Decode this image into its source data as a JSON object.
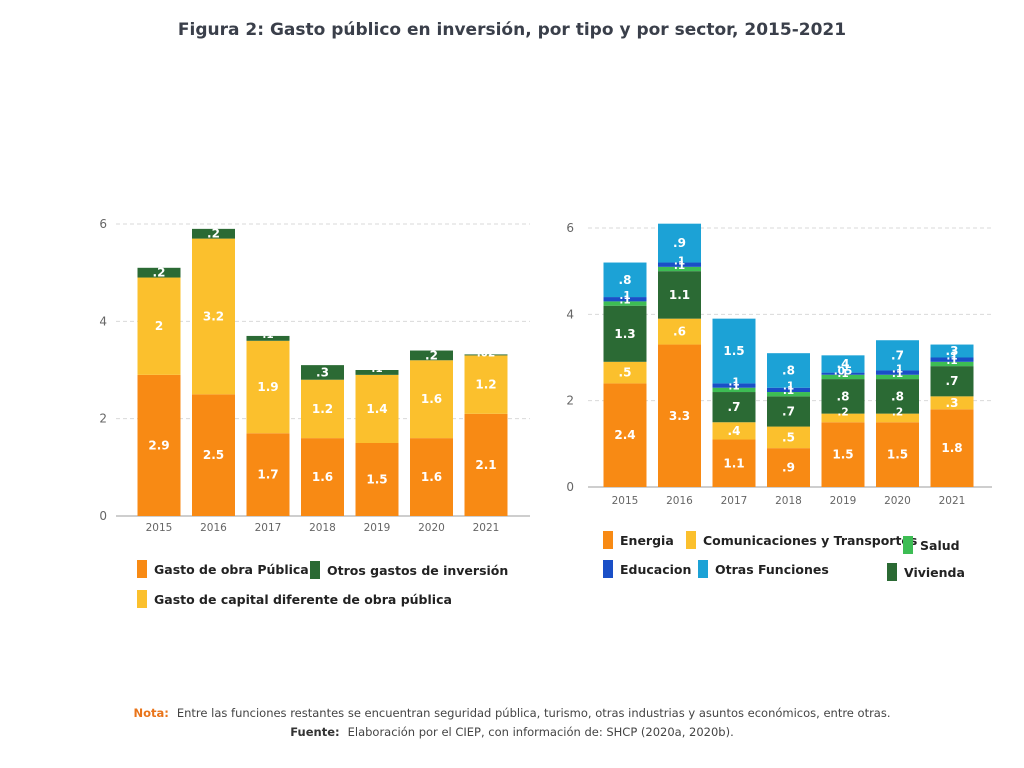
{
  "title": "Figura 2: Gasto público en inversión, por tipo y por sector, 2015-2021",
  "colors": {
    "orange": "#f88a14",
    "yellow": "#fbc02d",
    "darkgreen": "#2b6a34",
    "green": "#3dbd54",
    "blue": "#1a4fc7",
    "lightblue": "#1ca2d6",
    "grid": "#d9d9d9",
    "axis": "#9e9e9e"
  },
  "chart_data": [
    {
      "type": "bar",
      "stacked": true,
      "categories": [
        "2015",
        "2016",
        "2017",
        "2018",
        "2019",
        "2020",
        "2021"
      ],
      "ylim": [
        0,
        6
      ],
      "yticks": [
        0,
        2,
        4,
        6
      ],
      "grid": true,
      "legend_position": "bottom",
      "series": [
        {
          "name": "Gasto de obra Pública",
          "color": "orange",
          "values": [
            2.9,
            2.5,
            1.7,
            1.6,
            1.5,
            1.6,
            2.1
          ],
          "labels": [
            "2.9",
            "2.5",
            "1.7",
            "1.6",
            "1.5",
            "1.6",
            "2.1"
          ]
        },
        {
          "name": "Gasto de capital diferente de obra pública",
          "color": "yellow",
          "values": [
            2.0,
            3.2,
            1.9,
            1.2,
            1.4,
            1.6,
            1.2
          ],
          "labels": [
            "2",
            "3.2",
            "1.9",
            "1.2",
            "1.4",
            "1.6",
            "1.2"
          ]
        },
        {
          "name": "Otros gastos de inversión",
          "color": "darkgreen",
          "values": [
            0.2,
            0.2,
            0.1,
            0.3,
            0.1,
            0.2,
            0.02
          ],
          "labels": [
            ".2",
            ".2",
            ".1",
            ".3",
            ".1",
            ".2",
            ".02"
          ]
        }
      ]
    },
    {
      "type": "bar",
      "stacked": true,
      "categories": [
        "2015",
        "2016",
        "2017",
        "2018",
        "2019",
        "2020",
        "2021"
      ],
      "ylim": [
        0,
        6
      ],
      "yticks": [
        0,
        2,
        4,
        6
      ],
      "grid": true,
      "legend_position": "bottom",
      "series": [
        {
          "name": "Energia",
          "color": "orange",
          "values": [
            2.4,
            3.3,
            1.1,
            0.9,
            1.5,
            1.5,
            1.8
          ],
          "labels": [
            "2.4",
            "3.3",
            "1.1",
            ".9",
            "1.5",
            "1.5",
            "1.8"
          ]
        },
        {
          "name": "Comunicaciones y Transportes",
          "color": "yellow",
          "values": [
            0.5,
            0.6,
            0.4,
            0.5,
            0.2,
            0.2,
            0.3
          ],
          "labels": [
            ".5",
            ".6",
            ".4",
            ".5",
            ".2",
            ".2",
            ".3"
          ]
        },
        {
          "name": "Vivienda",
          "color": "darkgreen",
          "values": [
            1.3,
            1.1,
            0.7,
            0.7,
            0.8,
            0.8,
            0.7
          ],
          "labels": [
            "1.3",
            "1.1",
            ".7",
            ".7",
            ".8",
            ".8",
            ".7"
          ]
        },
        {
          "name": "Salud",
          "color": "green",
          "values": [
            0.1,
            0.1,
            0.1,
            0.1,
            0.1,
            0.1,
            0.1
          ],
          "labels": [
            ".1",
            ".1",
            ".1",
            ".1",
            ".1",
            ".1",
            ".1"
          ]
        },
        {
          "name": "Educacion",
          "color": "blue",
          "values": [
            0.1,
            0.1,
            0.1,
            0.1,
            0.05,
            0.1,
            0.1
          ],
          "labels": [
            ".1",
            ".1",
            ".1",
            ".1",
            ".05",
            ".1",
            ".1"
          ]
        },
        {
          "name": "Otras Funciones",
          "color": "lightblue",
          "values": [
            0.8,
            0.9,
            1.5,
            0.8,
            0.4,
            0.7,
            0.3
          ],
          "labels": [
            ".8",
            ".9",
            "1.5",
            ".8",
            ".4",
            ".7",
            ".3"
          ]
        }
      ]
    }
  ],
  "footnotes": {
    "note_label": "Nota:",
    "note_text": "Entre las funciones restantes se encuentran seguridad pública, turismo, otras industrias y asuntos económicos, entre otras.",
    "source_label": "Fuente:",
    "source_text": "Elaboración por el CIEP, con información de: SHCP (2020a, 2020b)."
  }
}
